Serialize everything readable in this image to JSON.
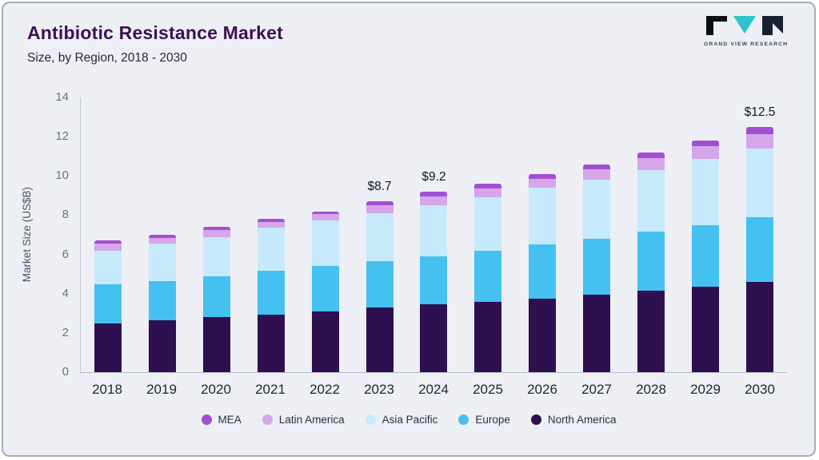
{
  "header": {
    "title": "Antibiotic Resistance Market",
    "subtitle": "Size, by Region, 2018 - 2030",
    "logo_text": "GRAND VIEW RESEARCH"
  },
  "chart_data": {
    "type": "bar",
    "stacked": true,
    "title": "Antibiotic Resistance Market Size, by Region, 2018 - 2030",
    "xlabel": "",
    "ylabel": "Market Size (US$B)",
    "ylim": [
      0,
      14
    ],
    "yticks": [
      0,
      2,
      4,
      6,
      8,
      10,
      12,
      14
    ],
    "grid": false,
    "legend_position": "bottom",
    "categories": [
      "2018",
      "2019",
      "2020",
      "2021",
      "2022",
      "2023",
      "2024",
      "2025",
      "2026",
      "2027",
      "2028",
      "2029",
      "2030"
    ],
    "series": [
      {
        "name": "North America",
        "color": "#2e0f4f",
        "values": [
          2.5,
          2.65,
          2.8,
          2.95,
          3.1,
          3.3,
          3.45,
          3.6,
          3.75,
          3.95,
          4.15,
          4.35,
          4.6
        ]
      },
      {
        "name": "Europe",
        "color": "#45c1f1",
        "values": [
          2.0,
          2.0,
          2.1,
          2.2,
          2.3,
          2.35,
          2.45,
          2.6,
          2.75,
          2.85,
          3.0,
          3.15,
          3.3
        ]
      },
      {
        "name": "Asia Pacific",
        "color": "#c6eafb",
        "values": [
          1.7,
          1.9,
          2.0,
          2.2,
          2.35,
          2.45,
          2.6,
          2.7,
          2.9,
          3.0,
          3.15,
          3.35,
          3.5
        ]
      },
      {
        "name": "Latin America",
        "color": "#d6a6ea",
        "values": [
          0.35,
          0.3,
          0.35,
          0.3,
          0.3,
          0.4,
          0.45,
          0.45,
          0.45,
          0.55,
          0.6,
          0.65,
          0.75
        ]
      },
      {
        "name": "MEA",
        "color": "#a24fd3",
        "values": [
          0.15,
          0.15,
          0.15,
          0.15,
          0.15,
          0.2,
          0.25,
          0.25,
          0.25,
          0.25,
          0.3,
          0.3,
          0.35
        ]
      }
    ],
    "totals": [
      6.7,
      7.0,
      7.4,
      7.8,
      8.2,
      8.7,
      9.2,
      9.6,
      10.1,
      10.6,
      11.2,
      11.8,
      12.5
    ],
    "annotations": [
      {
        "category": "2023",
        "label": "$8.7"
      },
      {
        "category": "2024",
        "label": "$9.2"
      },
      {
        "category": "2030",
        "label": "$12.5"
      }
    ],
    "legend": [
      "MEA",
      "Latin America",
      "Asia Pacific",
      "Europe",
      "North America"
    ]
  },
  "colors": {
    "background": "#edeff4",
    "border": "#a7adb9",
    "title": "#3e1053",
    "logo_teal": "#2fc3cd",
    "logo_dark": "#0c0f14"
  }
}
